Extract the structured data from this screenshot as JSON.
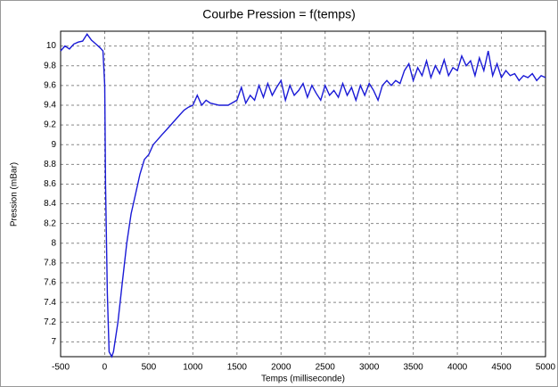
{
  "chart_data": {
    "type": "line",
    "title": "Courbe Pression = f(temps)",
    "x_label": "Temps (milliseconde)",
    "y_label": "Pression (mBar)",
    "x": [
      -500,
      -450,
      -400,
      -350,
      -300,
      -250,
      -200,
      -150,
      -100,
      -50,
      -20,
      0,
      10,
      30,
      50,
      80,
      100,
      150,
      200,
      250,
      300,
      350,
      400,
      450,
      500,
      550,
      600,
      650,
      700,
      750,
      800,
      850,
      900,
      950,
      1000,
      1050,
      1100,
      1150,
      1200,
      1300,
      1400,
      1500,
      1550,
      1600,
      1650,
      1700,
      1750,
      1800,
      1850,
      1900,
      1950,
      2000,
      2050,
      2100,
      2150,
      2200,
      2250,
      2300,
      2350,
      2400,
      2450,
      2500,
      2550,
      2600,
      2650,
      2700,
      2750,
      2800,
      2850,
      2900,
      2950,
      3000,
      3050,
      3100,
      3150,
      3200,
      3250,
      3300,
      3350,
      3400,
      3450,
      3500,
      3550,
      3600,
      3650,
      3700,
      3750,
      3800,
      3850,
      3900,
      3950,
      4000,
      4050,
      4100,
      4150,
      4200,
      4250,
      4300,
      4350,
      4400,
      4450,
      4500,
      4550,
      4600,
      4650,
      4700,
      4750,
      4800,
      4850,
      4900,
      4950,
      5000
    ],
    "series": [
      {
        "name": "Pression",
        "color": "#1a1ad6",
        "values": [
          9.95,
          10.0,
          9.97,
          10.02,
          10.04,
          10.05,
          10.12,
          10.06,
          10.02,
          9.98,
          9.95,
          9.6,
          8.6,
          7.5,
          6.9,
          6.85,
          6.9,
          7.2,
          7.6,
          8.0,
          8.3,
          8.5,
          8.7,
          8.85,
          8.9,
          9.0,
          9.05,
          9.1,
          9.15,
          9.2,
          9.25,
          9.3,
          9.35,
          9.38,
          9.4,
          9.5,
          9.4,
          9.45,
          9.42,
          9.4,
          9.4,
          9.45,
          9.58,
          9.42,
          9.5,
          9.45,
          9.6,
          9.48,
          9.62,
          9.5,
          9.58,
          9.65,
          9.45,
          9.6,
          9.5,
          9.55,
          9.62,
          9.48,
          9.6,
          9.52,
          9.45,
          9.6,
          9.5,
          9.55,
          9.48,
          9.62,
          9.5,
          9.58,
          9.45,
          9.6,
          9.5,
          9.62,
          9.55,
          9.45,
          9.6,
          9.65,
          9.6,
          9.65,
          9.62,
          9.75,
          9.82,
          9.65,
          9.78,
          9.7,
          9.85,
          9.68,
          9.8,
          9.72,
          9.86,
          9.7,
          9.78,
          9.75,
          9.9,
          9.8,
          9.85,
          9.7,
          9.88,
          9.75,
          9.95,
          9.7,
          9.82,
          9.68,
          9.75,
          9.7,
          9.72,
          9.65,
          9.7,
          9.68,
          9.72,
          9.65,
          9.7,
          9.68
        ]
      }
    ],
    "xlim": [
      -500,
      5000
    ],
    "xticks": [
      -500,
      0,
      500,
      1000,
      1500,
      2000,
      2500,
      3000,
      3500,
      4000,
      4500,
      5000
    ],
    "ylim": [
      6.85,
      10.15
    ],
    "yticks": [
      7,
      7.2,
      7.4,
      7.6,
      7.8,
      8,
      8.2,
      8.4,
      8.6,
      8.8,
      9,
      9.2,
      9.4,
      9.6,
      9.8,
      10
    ],
    "grid": true
  }
}
